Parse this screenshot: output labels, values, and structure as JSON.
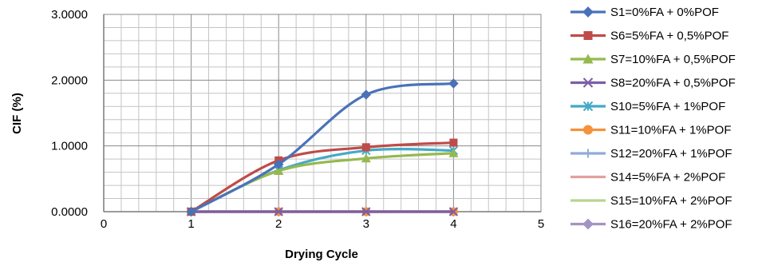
{
  "chart_data": {
    "type": "line",
    "title": "",
    "xlabel": "Drying Cycle",
    "ylabel": "CIF (%)",
    "xlim": [
      0,
      5
    ],
    "ylim": [
      0,
      3
    ],
    "x_ticks": [
      "0",
      "1",
      "2",
      "3",
      "4",
      "5"
    ],
    "y_ticks": [
      "0.0000",
      "1.0000",
      "2.0000",
      "3.0000"
    ],
    "grid": true,
    "smooth": true,
    "legend_position": "right",
    "x": [
      1,
      2,
      3,
      4
    ],
    "series": [
      {
        "name": "S1=0%FA + 0%POF",
        "color": "#4a72b8",
        "marker": "diamond",
        "values": [
          0,
          0.72,
          1.78,
          1.95
        ]
      },
      {
        "name": "S6=5%FA + 0,5%POF",
        "color": "#bf4b48",
        "marker": "square",
        "values": [
          0,
          0.78,
          0.98,
          1.05
        ]
      },
      {
        "name": "S7=10%FA + 0,5%POF",
        "color": "#95b94f",
        "marker": "triangle",
        "values": [
          0,
          0.62,
          0.81,
          0.89
        ]
      },
      {
        "name": "S8=20%FA + 0,5%POF",
        "color": "#7c5ea4",
        "marker": "x",
        "values": [
          0,
          0,
          0,
          0
        ]
      },
      {
        "name": "S10=5%FA + 1%POF",
        "color": "#45a9c5",
        "marker": "asterisk",
        "values": [
          0,
          0.63,
          0.93,
          0.93
        ]
      },
      {
        "name": "S11=10%FA + 1%POF",
        "color": "#f4923e",
        "marker": "circle",
        "values": [
          0,
          0,
          0,
          0
        ]
      },
      {
        "name": "S12=20%FA + 1%POF",
        "color": "#91abd9",
        "marker": "plus",
        "values": [
          0,
          0,
          0,
          0
        ]
      },
      {
        "name": "S14=5%FA + 2%POF",
        "color": "#e2a09f",
        "marker": "none",
        "values": [
          0,
          0,
          0,
          0
        ]
      },
      {
        "name": "S15=10%FA + 2%POF",
        "color": "#b9d48f",
        "marker": "none",
        "values": [
          0,
          0,
          0,
          0
        ]
      },
      {
        "name": "S16=20%FA + 2%POF",
        "color": "#a592c5",
        "marker": "diamond",
        "values": [
          0,
          0,
          0,
          0
        ]
      }
    ]
  }
}
